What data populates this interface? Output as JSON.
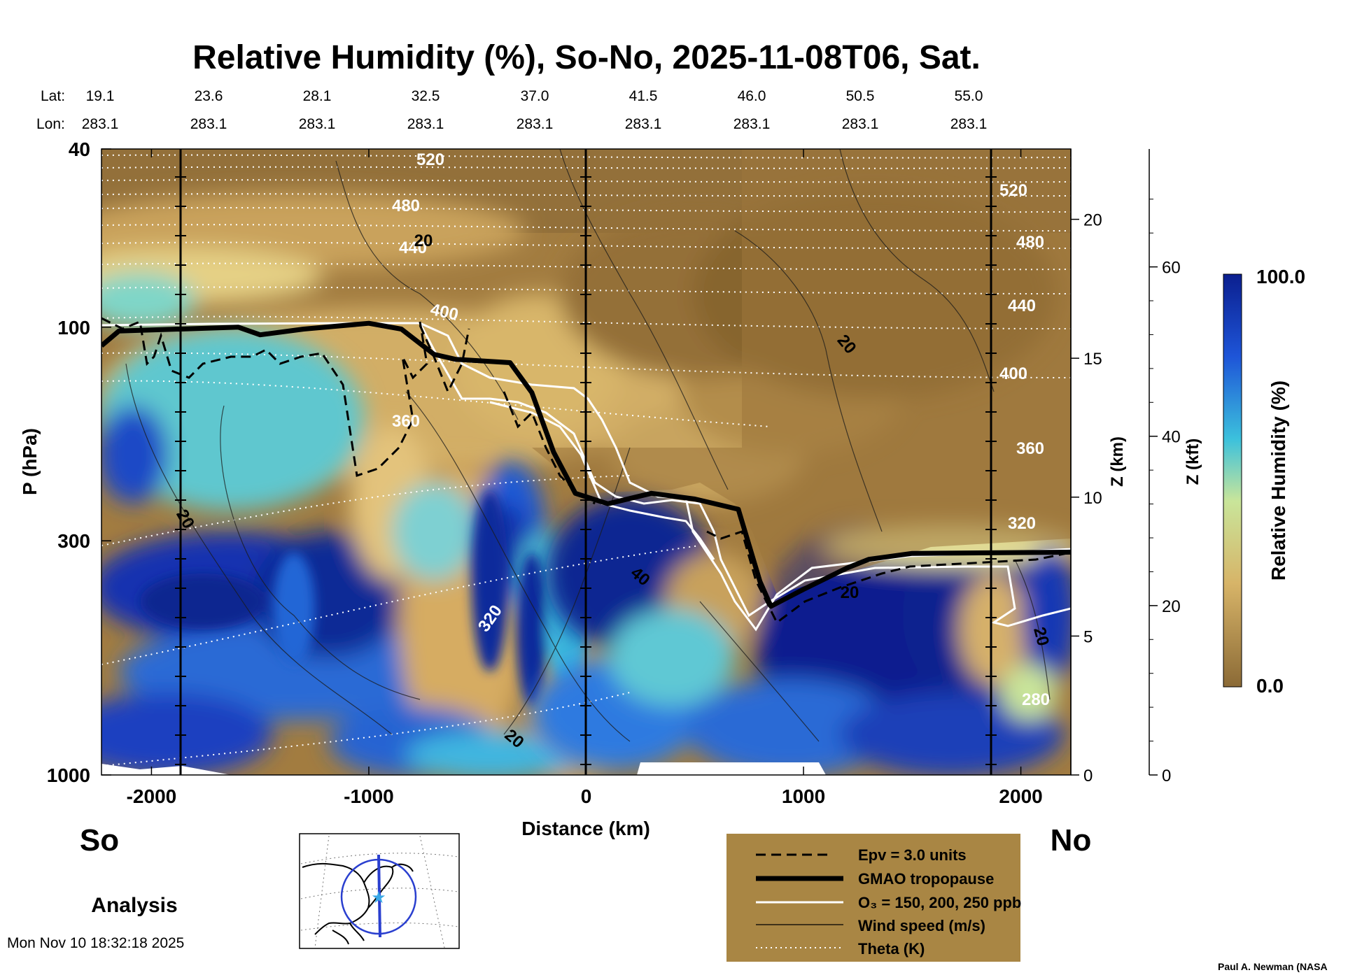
{
  "chart_data": {
    "type": "heatmap",
    "title": "Relative Humidity (%), So-No, 2025-11-08T06, Sat.",
    "xlabel": "Distance (km)",
    "ylabel": "P (hPa)",
    "z_km_label": "Z (km)",
    "z_kft_label": "Z (kft)",
    "x_ticks": [
      -2000,
      -1000,
      0,
      1000,
      2000
    ],
    "xlim": [
      -2230,
      2230
    ],
    "y_ticks": [
      40,
      100,
      300,
      1000
    ],
    "ylim": [
      1000,
      40
    ],
    "y_scale": "log",
    "z_km_ticks": [
      0,
      5,
      10,
      15,
      20
    ],
    "z_kft_ticks": [
      0,
      20,
      40,
      60
    ],
    "lat_label": "Lat:",
    "lon_label": "Lon:",
    "lats": [
      "19.1",
      "23.6",
      "28.1",
      "32.5",
      "37.0",
      "41.5",
      "46.0",
      "50.5",
      "55.0"
    ],
    "lons": [
      "283.1",
      "283.1",
      "283.1",
      "283.1",
      "283.1",
      "283.1",
      "283.1",
      "283.1",
      "283.1"
    ],
    "colorbar": {
      "label": "Relative Humidity (%)",
      "max": "100.0",
      "min": "0.0"
    },
    "theta_labels": [
      "520",
      "480",
      "440",
      "400",
      "360",
      "320",
      "280",
      "520",
      "480",
      "440",
      "400",
      "360",
      "320"
    ],
    "wind_labels": [
      "20",
      "20",
      "20",
      "40",
      "20",
      "20",
      "20"
    ],
    "tropopause": [
      [
        -2230,
        110
      ],
      [
        -2150,
        102
      ],
      [
        -1600,
        100
      ],
      [
        -1500,
        104
      ],
      [
        -1300,
        101
      ],
      [
        -1000,
        98
      ],
      [
        -850,
        101
      ],
      [
        -700,
        115
      ],
      [
        -600,
        118
      ],
      [
        -350,
        120
      ],
      [
        -250,
        140
      ],
      [
        -150,
        190
      ],
      [
        -50,
        235
      ],
      [
        100,
        248
      ],
      [
        300,
        235
      ],
      [
        500,
        242
      ],
      [
        700,
        255
      ],
      [
        800,
        370
      ],
      [
        850,
        420
      ],
      [
        1000,
        385
      ],
      [
        1200,
        345
      ],
      [
        1300,
        330
      ],
      [
        1500,
        320
      ],
      [
        2230,
        318
      ]
    ],
    "legend": [
      "Epv = 3.0 units",
      "GMAO tropopause",
      "O₃ = 150, 200, 250 ppb",
      "Wind speed (m/s)",
      "Theta (K)"
    ]
  },
  "annotations": {
    "left_end": "So",
    "right_end": "No",
    "mode": "Analysis",
    "timestamp": "Mon Nov 10 18:32:18 2025",
    "credit": "Paul A. Newman (NASA"
  },
  "colors": {
    "dry": "#8b6a36",
    "mid": "#d7b468",
    "moist": "#3cc1dc",
    "wet": "#0b1f8f",
    "legend_bg": "#a98644"
  }
}
